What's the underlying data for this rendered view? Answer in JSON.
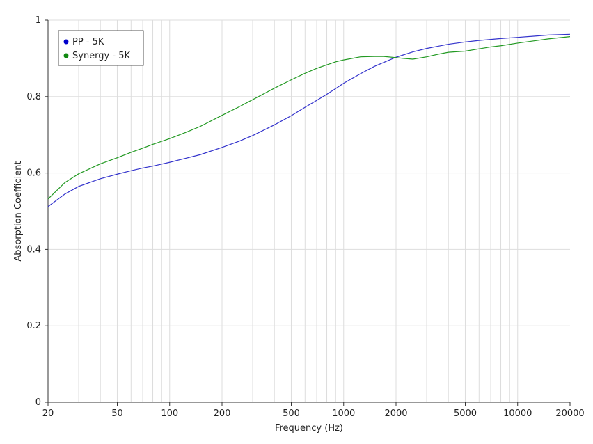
{
  "chart_data": {
    "type": "line",
    "title": "",
    "xlabel": "Frequency (Hz)",
    "ylabel": "Absorption Coefficient",
    "x_scale": "log",
    "xlim": [
      20,
      20000
    ],
    "ylim": [
      0,
      1
    ],
    "x_major_ticks": [
      20,
      50,
      100,
      200,
      500,
      1000,
      2000,
      5000,
      10000,
      20000
    ],
    "x_tick_labels": [
      "20",
      "50",
      "100",
      "200",
      "500",
      "1000",
      "2000",
      "5000",
      "10000",
      "20000"
    ],
    "x_minor_grid": [
      30,
      40,
      60,
      70,
      80,
      90,
      300,
      400,
      600,
      700,
      800,
      900,
      3000,
      4000,
      6000,
      7000,
      8000,
      9000
    ],
    "y_ticks": [
      0,
      0.2,
      0.4,
      0.6,
      0.8,
      1
    ],
    "y_tick_labels": [
      "0",
      "0.2",
      "0.4",
      "0.6",
      "0.8",
      "1"
    ],
    "grid": true,
    "legend_position": "top-left",
    "series": [
      {
        "name": "PP - 5K",
        "color": "#3333cc",
        "marker_color": "#0000cc",
        "x": [
          20,
          25,
          30,
          40,
          50,
          60,
          70,
          80,
          100,
          125,
          150,
          200,
          250,
          300,
          400,
          500,
          600,
          700,
          800,
          900,
          1000,
          1250,
          1500,
          2000,
          2500,
          3000,
          4000,
          5000,
          6000,
          8000,
          10000,
          15000,
          20000
        ],
        "y": [
          0.512,
          0.545,
          0.565,
          0.585,
          0.597,
          0.606,
          0.613,
          0.618,
          0.628,
          0.639,
          0.648,
          0.667,
          0.683,
          0.698,
          0.726,
          0.75,
          0.772,
          0.79,
          0.806,
          0.821,
          0.835,
          0.86,
          0.879,
          0.903,
          0.917,
          0.926,
          0.937,
          0.943,
          0.947,
          0.952,
          0.955,
          0.961,
          0.963
        ]
      },
      {
        "name": "Synergy - 5K",
        "color": "#229922",
        "marker_color": "#118811",
        "x": [
          20,
          25,
          30,
          40,
          50,
          60,
          70,
          80,
          100,
          125,
          150,
          200,
          250,
          300,
          400,
          500,
          600,
          700,
          800,
          900,
          1000,
          1250,
          1500,
          1700,
          2000,
          2200,
          2500,
          3000,
          3500,
          4000,
          5000,
          6000,
          7000,
          8000,
          10000,
          15000,
          20000
        ],
        "y": [
          0.532,
          0.575,
          0.598,
          0.624,
          0.64,
          0.654,
          0.665,
          0.675,
          0.69,
          0.707,
          0.722,
          0.751,
          0.773,
          0.792,
          0.822,
          0.844,
          0.861,
          0.874,
          0.883,
          0.891,
          0.896,
          0.904,
          0.905,
          0.905,
          0.902,
          0.9,
          0.898,
          0.904,
          0.911,
          0.916,
          0.919,
          0.925,
          0.93,
          0.933,
          0.94,
          0.951,
          0.957
        ]
      }
    ]
  }
}
